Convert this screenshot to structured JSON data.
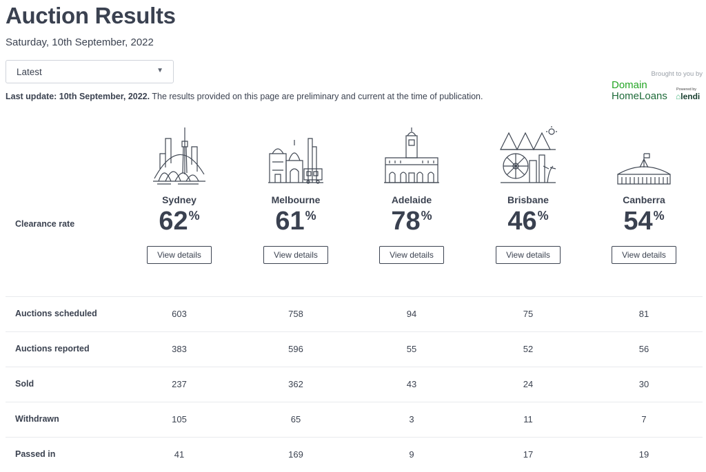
{
  "header": {
    "title": "Auction Results",
    "date": "Saturday, 10th September, 2022"
  },
  "filter": {
    "selected": "Latest"
  },
  "update": {
    "bold": "Last update: 10th September, 2022.",
    "text": " The results provided on this page are preliminary and current at the time of publication."
  },
  "sponsor": {
    "brought": "Brought to you by",
    "line1": "Domain",
    "line2": "HomeLoans",
    "powered": "Powered by",
    "lendi": "lendi"
  },
  "clearance_label": "Clearance rate",
  "rate_unit": "%",
  "cities": [
    {
      "name": "Sydney",
      "rate": "62",
      "button": "View details",
      "icon": "sydney-skyline-icon"
    },
    {
      "name": "Melbourne",
      "rate": "61",
      "button": "View details",
      "icon": "melbourne-skyline-icon"
    },
    {
      "name": "Adelaide",
      "rate": "78",
      "button": "View details",
      "icon": "adelaide-skyline-icon"
    },
    {
      "name": "Brisbane",
      "rate": "46",
      "button": "View details",
      "icon": "brisbane-skyline-icon"
    },
    {
      "name": "Canberra",
      "rate": "54",
      "button": "View details",
      "icon": "canberra-skyline-icon"
    }
  ],
  "stats": [
    {
      "label": "Auctions scheduled",
      "values": [
        "603",
        "758",
        "94",
        "75",
        "81"
      ]
    },
    {
      "label": "Auctions reported",
      "values": [
        "383",
        "596",
        "55",
        "52",
        "56"
      ]
    },
    {
      "label": "Sold",
      "values": [
        "237",
        "362",
        "43",
        "24",
        "30"
      ]
    },
    {
      "label": "Withdrawn",
      "values": [
        "105",
        "65",
        "3",
        "11",
        "7"
      ]
    },
    {
      "label": "Passed in",
      "values": [
        "41",
        "169",
        "9",
        "17",
        "19"
      ]
    }
  ]
}
